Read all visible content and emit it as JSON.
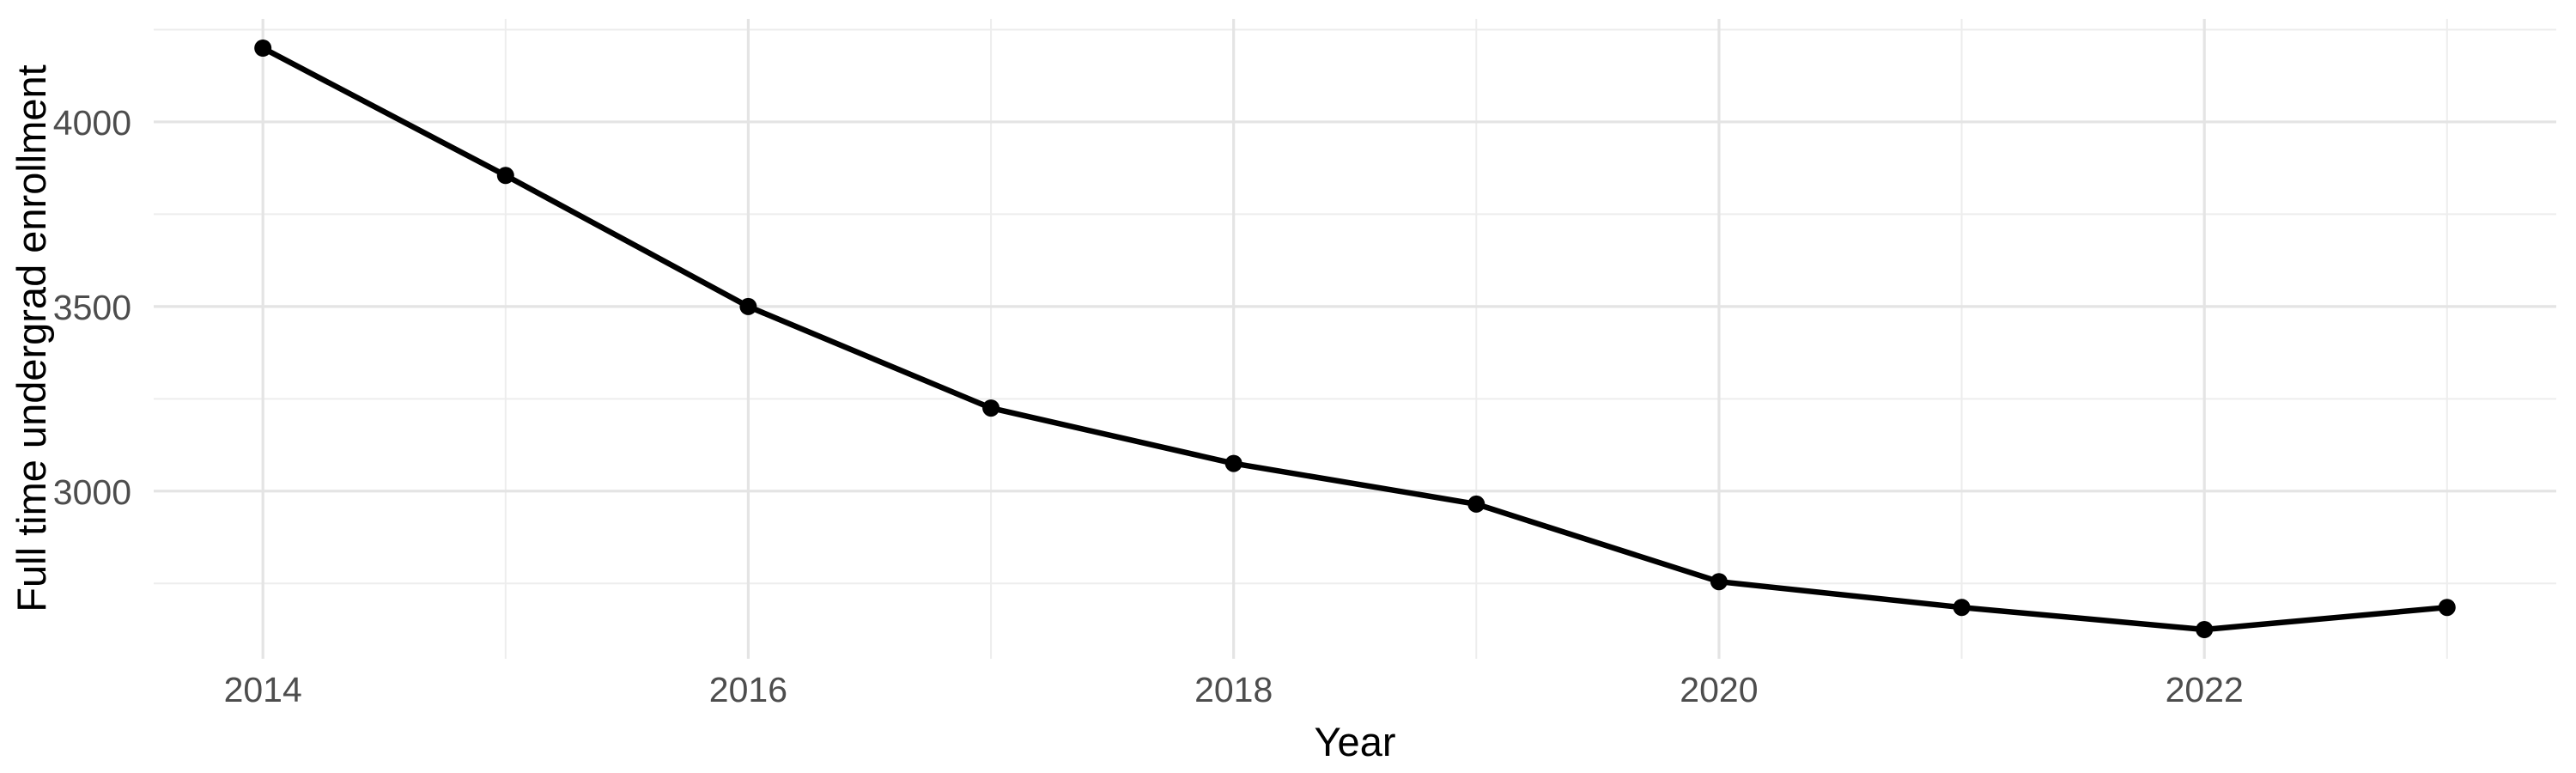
{
  "chart_data": {
    "type": "line",
    "title": "",
    "xlabel": "Year",
    "ylabel": "Full time undergrad enrollment",
    "x": [
      2014,
      2015,
      2016,
      2017,
      2018,
      2019,
      2020,
      2021,
      2022,
      2023
    ],
    "series": [
      {
        "name": "Full time undergrad enrollment",
        "values": [
          4200,
          3855,
          3500,
          3225,
          3075,
          2965,
          2755,
          2685,
          2625,
          2685
        ]
      }
    ],
    "x_ticks_major": [
      2014,
      2016,
      2018,
      2020,
      2022
    ],
    "x_ticks_minor": [
      2015,
      2017,
      2019,
      2021,
      2023
    ],
    "y_ticks_major": [
      3000,
      3500,
      4000
    ],
    "y_ticks_minor": [
      2750,
      3250,
      3750,
      4250
    ],
    "xlim": [
      2013.55,
      2023.45
    ],
    "ylim": [
      2546,
      4279
    ],
    "grid": "on",
    "legend": "none",
    "marker": "filled-circle",
    "colors": {
      "background": "#ffffff",
      "line": "#000000",
      "point": "#000000",
      "grid_major": "#e4e4e4",
      "grid_minor": "#ededed",
      "tick_label": "#4d4d4d",
      "axis_title": "#000000"
    }
  }
}
